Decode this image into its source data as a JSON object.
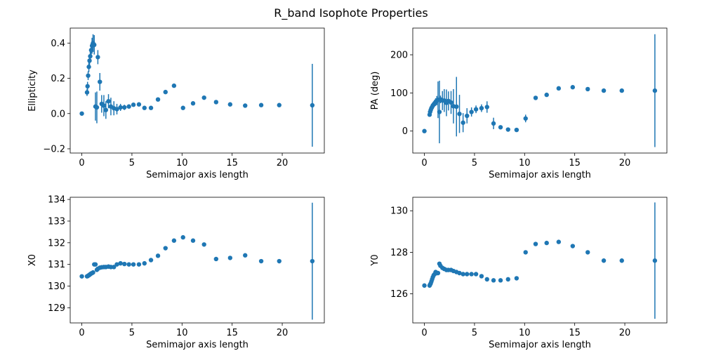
{
  "figure": {
    "suptitle": "R_band Isophote Properties"
  },
  "style": {
    "marker_color": "#1f77b4",
    "axis_color": "#000000"
  },
  "chart_data": [
    {
      "type": "scatter",
      "id": "ellipticity",
      "xlabel": "Semimajor axis length",
      "ylabel": "Ellipticity",
      "xlim": [
        -1.16,
        24.2
      ],
      "ylim": [
        -0.224,
        0.485
      ],
      "xticks": [
        0,
        5,
        10,
        15,
        20
      ],
      "yticks": [
        -0.2,
        0.0,
        0.2,
        0.4
      ],
      "ytick_labels": [
        "−0.2",
        "0.0",
        "0.2",
        "0.4"
      ],
      "points": [
        [
          0.0,
          0.0,
          0.0
        ],
        [
          0.52,
          0.12,
          0.02
        ],
        [
          0.57,
          0.155,
          0.025
        ],
        [
          0.63,
          0.215,
          0.025
        ],
        [
          0.7,
          0.265,
          0.03
        ],
        [
          0.77,
          0.3,
          0.03
        ],
        [
          0.84,
          0.325,
          0.035
        ],
        [
          0.93,
          0.36,
          0.04
        ],
        [
          1.02,
          0.385,
          0.045
        ],
        [
          1.12,
          0.4,
          0.05
        ],
        [
          1.24,
          0.39,
          0.055
        ],
        [
          1.36,
          0.04,
          0.08
        ],
        [
          1.5,
          0.035,
          0.09
        ],
        [
          1.6,
          0.32,
          0.04
        ],
        [
          1.8,
          0.18,
          0.05
        ],
        [
          1.98,
          0.055,
          0.05
        ],
        [
          2.2,
          0.045,
          0.06
        ],
        [
          2.4,
          0.02,
          0.05
        ],
        [
          2.66,
          0.07,
          0.04
        ],
        [
          2.9,
          0.04,
          0.05
        ],
        [
          3.2,
          0.03,
          0.04
        ],
        [
          3.5,
          0.025,
          0.03
        ],
        [
          3.86,
          0.035,
          0.02
        ],
        [
          4.25,
          0.035,
          0.015
        ],
        [
          4.7,
          0.04,
          0.01
        ],
        [
          5.15,
          0.05,
          0.01
        ],
        [
          5.7,
          0.052,
          0.01
        ],
        [
          6.25,
          0.032,
          0.01
        ],
        [
          6.9,
          0.032,
          0.01
        ],
        [
          7.6,
          0.08,
          0.01
        ],
        [
          8.35,
          0.122,
          0.01
        ],
        [
          9.2,
          0.158,
          0.01
        ],
        [
          10.1,
          0.032,
          0.01
        ],
        [
          11.1,
          0.058,
          0.01
        ],
        [
          12.2,
          0.09,
          0.008
        ],
        [
          13.4,
          0.065,
          0.008
        ],
        [
          14.8,
          0.052,
          0.008
        ],
        [
          16.3,
          0.045,
          0.008
        ],
        [
          17.9,
          0.048,
          0.008
        ],
        [
          19.7,
          0.048,
          0.008
        ],
        [
          23.0,
          0.047,
          0.235
        ]
      ]
    },
    {
      "type": "scatter",
      "id": "pa",
      "xlabel": "Semimajor axis length",
      "ylabel": "PA (deg)",
      "xlim": [
        -1.16,
        24.2
      ],
      "ylim": [
        -57.6,
        270
      ],
      "xticks": [
        0,
        5,
        10,
        15,
        20
      ],
      "yticks": [
        0,
        100,
        200
      ],
      "ytick_labels": [
        "0",
        "100",
        "200"
      ],
      "points": [
        [
          0.0,
          0.0,
          0.0
        ],
        [
          0.52,
          43,
          5
        ],
        [
          0.57,
          50,
          5
        ],
        [
          0.63,
          55,
          6
        ],
        [
          0.7,
          60,
          6
        ],
        [
          0.77,
          63,
          6
        ],
        [
          0.84,
          67,
          7
        ],
        [
          0.93,
          70,
          8
        ],
        [
          1.02,
          73,
          9
        ],
        [
          1.12,
          76,
          10
        ],
        [
          1.24,
          80,
          12
        ],
        [
          1.36,
          82,
          48
        ],
        [
          1.5,
          50,
          82
        ],
        [
          1.6,
          83,
          10
        ],
        [
          1.8,
          80,
          25
        ],
        [
          1.98,
          80,
          30
        ],
        [
          2.2,
          74,
          35
        ],
        [
          2.4,
          79,
          25
        ],
        [
          2.66,
          75,
          30
        ],
        [
          2.9,
          65,
          45
        ],
        [
          3.2,
          64,
          78
        ],
        [
          3.5,
          45,
          50
        ],
        [
          3.86,
          22,
          25
        ],
        [
          4.25,
          40,
          20
        ],
        [
          4.7,
          50,
          12
        ],
        [
          5.15,
          57,
          10
        ],
        [
          5.7,
          60,
          10
        ],
        [
          6.25,
          63,
          15
        ],
        [
          6.9,
          20,
          15
        ],
        [
          7.6,
          10,
          5
        ],
        [
          8.35,
          4,
          3
        ],
        [
          9.2,
          3,
          3
        ],
        [
          10.1,
          33,
          10
        ],
        [
          11.1,
          87,
          3
        ],
        [
          12.2,
          95,
          3
        ],
        [
          13.4,
          112,
          3
        ],
        [
          14.8,
          115,
          3
        ],
        [
          16.3,
          110,
          3
        ],
        [
          17.9,
          106,
          3
        ],
        [
          19.7,
          106,
          3
        ],
        [
          23.0,
          106,
          148
        ]
      ]
    },
    {
      "type": "scatter",
      "id": "x0",
      "xlabel": "Semimajor axis length",
      "ylabel": "X0",
      "xlim": [
        -1.16,
        24.2
      ],
      "ylim": [
        128.3,
        134.1
      ],
      "xticks": [
        0,
        5,
        10,
        15,
        20
      ],
      "yticks": [
        129,
        130,
        131,
        132,
        133,
        134
      ],
      "ytick_labels": [
        "129",
        "130",
        "131",
        "132",
        "133",
        "134"
      ],
      "points": [
        [
          0.0,
          130.45,
          0.0
        ],
        [
          0.52,
          130.45,
          0.01
        ],
        [
          0.57,
          130.46,
          0.01
        ],
        [
          0.63,
          130.48,
          0.01
        ],
        [
          0.7,
          130.5,
          0.01
        ],
        [
          0.77,
          130.52,
          0.01
        ],
        [
          0.84,
          130.55,
          0.01
        ],
        [
          0.93,
          130.58,
          0.01
        ],
        [
          1.02,
          130.6,
          0.01
        ],
        [
          1.12,
          130.63,
          0.02
        ],
        [
          1.24,
          131.0,
          0.03
        ],
        [
          1.36,
          131.0,
          0.05
        ],
        [
          1.5,
          130.75,
          0.05
        ],
        [
          1.6,
          130.8,
          0.03
        ],
        [
          1.8,
          130.85,
          0.05
        ],
        [
          1.98,
          130.87,
          0.05
        ],
        [
          2.2,
          130.88,
          0.06
        ],
        [
          2.4,
          130.88,
          0.05
        ],
        [
          2.66,
          130.9,
          0.06
        ],
        [
          2.9,
          130.88,
          0.06
        ],
        [
          3.2,
          130.88,
          0.07
        ],
        [
          3.5,
          131.0,
          0.05
        ],
        [
          3.86,
          131.05,
          0.02
        ],
        [
          4.25,
          131.02,
          0.02
        ],
        [
          4.7,
          131.0,
          0.02
        ],
        [
          5.15,
          131.0,
          0.02
        ],
        [
          5.7,
          131.0,
          0.02
        ],
        [
          6.25,
          131.05,
          0.02
        ],
        [
          6.9,
          131.2,
          0.02
        ],
        [
          7.6,
          131.4,
          0.02
        ],
        [
          8.35,
          131.75,
          0.02
        ],
        [
          9.2,
          132.1,
          0.02
        ],
        [
          10.1,
          132.25,
          0.02
        ],
        [
          11.1,
          132.1,
          0.02
        ],
        [
          12.2,
          131.92,
          0.02
        ],
        [
          13.4,
          131.25,
          0.02
        ],
        [
          14.8,
          131.3,
          0.02
        ],
        [
          16.3,
          131.42,
          0.02
        ],
        [
          17.9,
          131.15,
          0.02
        ],
        [
          19.7,
          131.15,
          0.1
        ],
        [
          23.0,
          131.15,
          2.7
        ]
      ]
    },
    {
      "type": "scatter",
      "id": "y0",
      "xlabel": "Semimajor axis length",
      "ylabel": "Y0",
      "xlim": [
        -1.16,
        24.2
      ],
      "ylim": [
        124.6,
        130.65
      ],
      "xticks": [
        0,
        5,
        10,
        15,
        20
      ],
      "yticks": [
        126,
        128,
        130
      ],
      "ytick_labels": [
        "126",
        "128",
        "130"
      ],
      "points": [
        [
          0.0,
          126.4,
          0.0
        ],
        [
          0.52,
          126.4,
          0.01
        ],
        [
          0.57,
          126.45,
          0.01
        ],
        [
          0.63,
          126.5,
          0.01
        ],
        [
          0.7,
          126.6,
          0.01
        ],
        [
          0.77,
          126.7,
          0.01
        ],
        [
          0.84,
          126.8,
          0.01
        ],
        [
          0.93,
          126.9,
          0.01
        ],
        [
          1.02,
          126.95,
          0.01
        ],
        [
          1.12,
          127.05,
          0.02
        ],
        [
          1.24,
          127.0,
          0.03
        ],
        [
          1.36,
          127.0,
          0.03
        ],
        [
          1.5,
          127.45,
          0.04
        ],
        [
          1.6,
          127.35,
          0.03
        ],
        [
          1.8,
          127.25,
          0.03
        ],
        [
          1.98,
          127.2,
          0.03
        ],
        [
          2.2,
          127.15,
          0.03
        ],
        [
          2.4,
          127.15,
          0.03
        ],
        [
          2.66,
          127.15,
          0.03
        ],
        [
          2.9,
          127.1,
          0.03
        ],
        [
          3.2,
          127.05,
          0.03
        ],
        [
          3.5,
          127.0,
          0.03
        ],
        [
          3.86,
          126.95,
          0.02
        ],
        [
          4.25,
          126.95,
          0.02
        ],
        [
          4.7,
          126.95,
          0.02
        ],
        [
          5.15,
          126.95,
          0.02
        ],
        [
          5.7,
          126.85,
          0.02
        ],
        [
          6.25,
          126.7,
          0.02
        ],
        [
          6.9,
          126.65,
          0.02
        ],
        [
          7.6,
          126.65,
          0.02
        ],
        [
          8.35,
          126.7,
          0.02
        ],
        [
          9.2,
          126.75,
          0.02
        ],
        [
          10.1,
          128.0,
          0.02
        ],
        [
          11.1,
          128.4,
          0.02
        ],
        [
          12.2,
          128.45,
          0.02
        ],
        [
          13.4,
          128.5,
          0.02
        ],
        [
          14.8,
          128.3,
          0.02
        ],
        [
          16.3,
          128.0,
          0.02
        ],
        [
          17.9,
          127.6,
          0.02
        ],
        [
          19.7,
          127.6,
          0.1
        ],
        [
          23.0,
          127.6,
          2.8
        ]
      ]
    }
  ]
}
